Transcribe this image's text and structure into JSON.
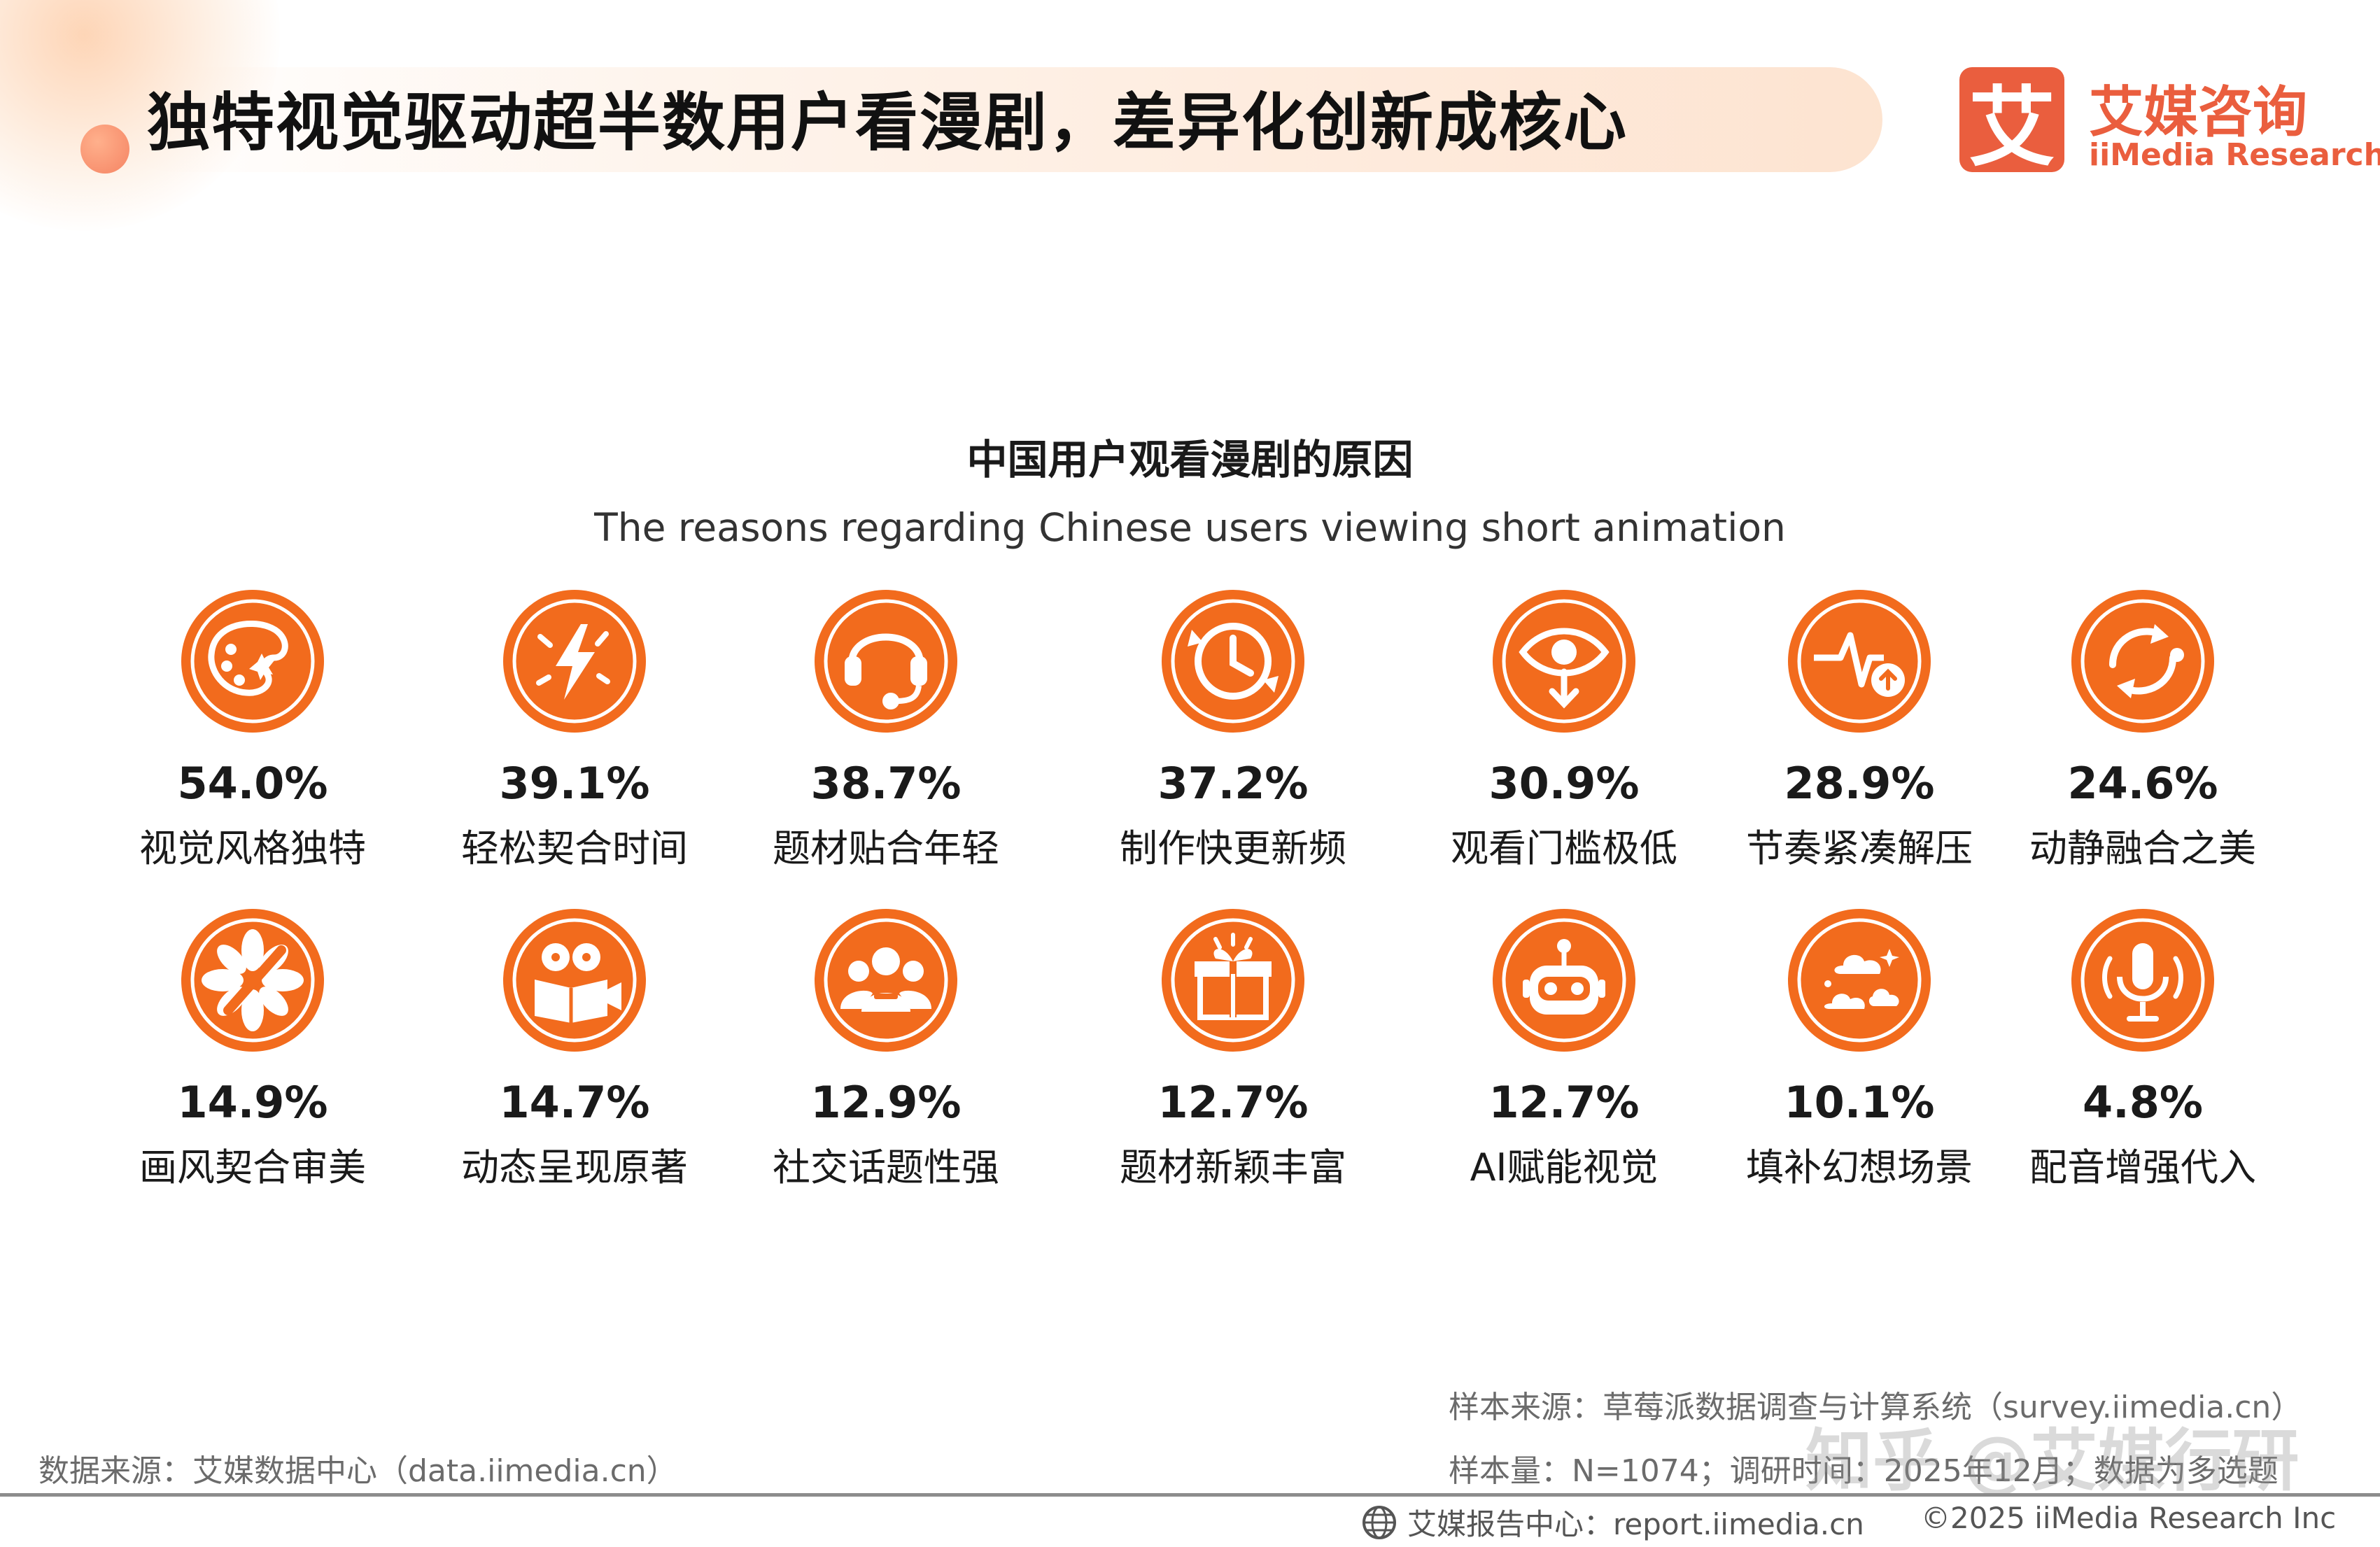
{
  "header": {
    "headline": "独特视觉驱动超半数用户看漫剧，差异化创新成核心",
    "logo_mark": "艾",
    "logo_cn": "艾媒咨询",
    "logo_en": "iiMedia Research",
    "brand_color": "#ea5e3e"
  },
  "chart_data": {
    "type": "bar",
    "title": "中国用户观看漫剧的原因",
    "subtitle": "The reasons regarding Chinese users viewing short animation",
    "unit": "%",
    "categories": [
      "视觉风格独特",
      "轻松契合时间",
      "题材贴合年轻",
      "制作快更新频",
      "观看门槛极低",
      "节奏紧凑解压",
      "动静融合之美",
      "画风契合审美",
      "动态呈现原著",
      "社交话题性强",
      "题材新颖丰富",
      "AI赋能视觉",
      "填补幻想场景",
      "配音增强代入"
    ],
    "values": [
      54.0,
      39.1,
      38.7,
      37.2,
      30.9,
      28.9,
      24.6,
      14.9,
      14.7,
      12.9,
      12.7,
      12.7,
      10.1,
      4.8
    ],
    "value_labels": [
      "54.0%",
      "39.1%",
      "38.7%",
      "37.2%",
      "30.9%",
      "28.9%",
      "24.6%",
      "14.9%",
      "14.7%",
      "12.9%",
      "12.7%",
      "12.7%",
      "10.1%",
      "4.8%"
    ],
    "icons": [
      "palette-icon",
      "lightning-icon",
      "headset-icon",
      "clock-refresh-icon",
      "eye-download-icon",
      "pulse-upload-icon",
      "cycle-icon",
      "flower-brush-icon",
      "film-book-icon",
      "group-icon",
      "gift-icon",
      "robot-icon",
      "clouds-icon",
      "microphone-icon"
    ],
    "icon_color": "#f26b1d"
  },
  "footer": {
    "sample_source": "样本来源：草莓派数据调查与计算系统（survey.iimedia.cn）",
    "sample_size": "样本量：N=1074；调研时间：2025年12月；数据为多选题",
    "data_source": "数据来源：艾媒数据中心（data.iimedia.cn）",
    "report_center": "艾媒报告中心：report.iimedia.cn",
    "copyright": "©2025  iiMedia Research  Inc",
    "watermark": "知乎 @艾媒行研"
  }
}
